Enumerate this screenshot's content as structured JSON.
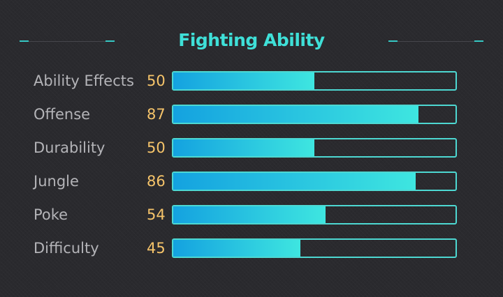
{
  "title": "Fighting Ability",
  "stats": [
    {
      "label": "Ability Effects",
      "value": "50",
      "fraction": 0.5
    },
    {
      "label": "Offense",
      "value": "87",
      "fraction": 0.87
    },
    {
      "label": "Durability",
      "value": "50",
      "fraction": 0.5
    },
    {
      "label": "Jungle",
      "value": "86",
      "fraction": 0.86
    },
    {
      "label": "Poke",
      "value": "54",
      "fraction": 0.54
    },
    {
      "label": "Difficulty",
      "value": "45",
      "fraction": 0.45
    }
  ],
  "colors": {
    "title": "#3fe0d8",
    "value": "#f6c46a",
    "label": "#b4b4b8",
    "bar_border": "#4dd8d2",
    "bar_fill_start": "#14a2e0",
    "bar_fill_end": "#3ee6e0",
    "background": "#2a2a2e"
  }
}
